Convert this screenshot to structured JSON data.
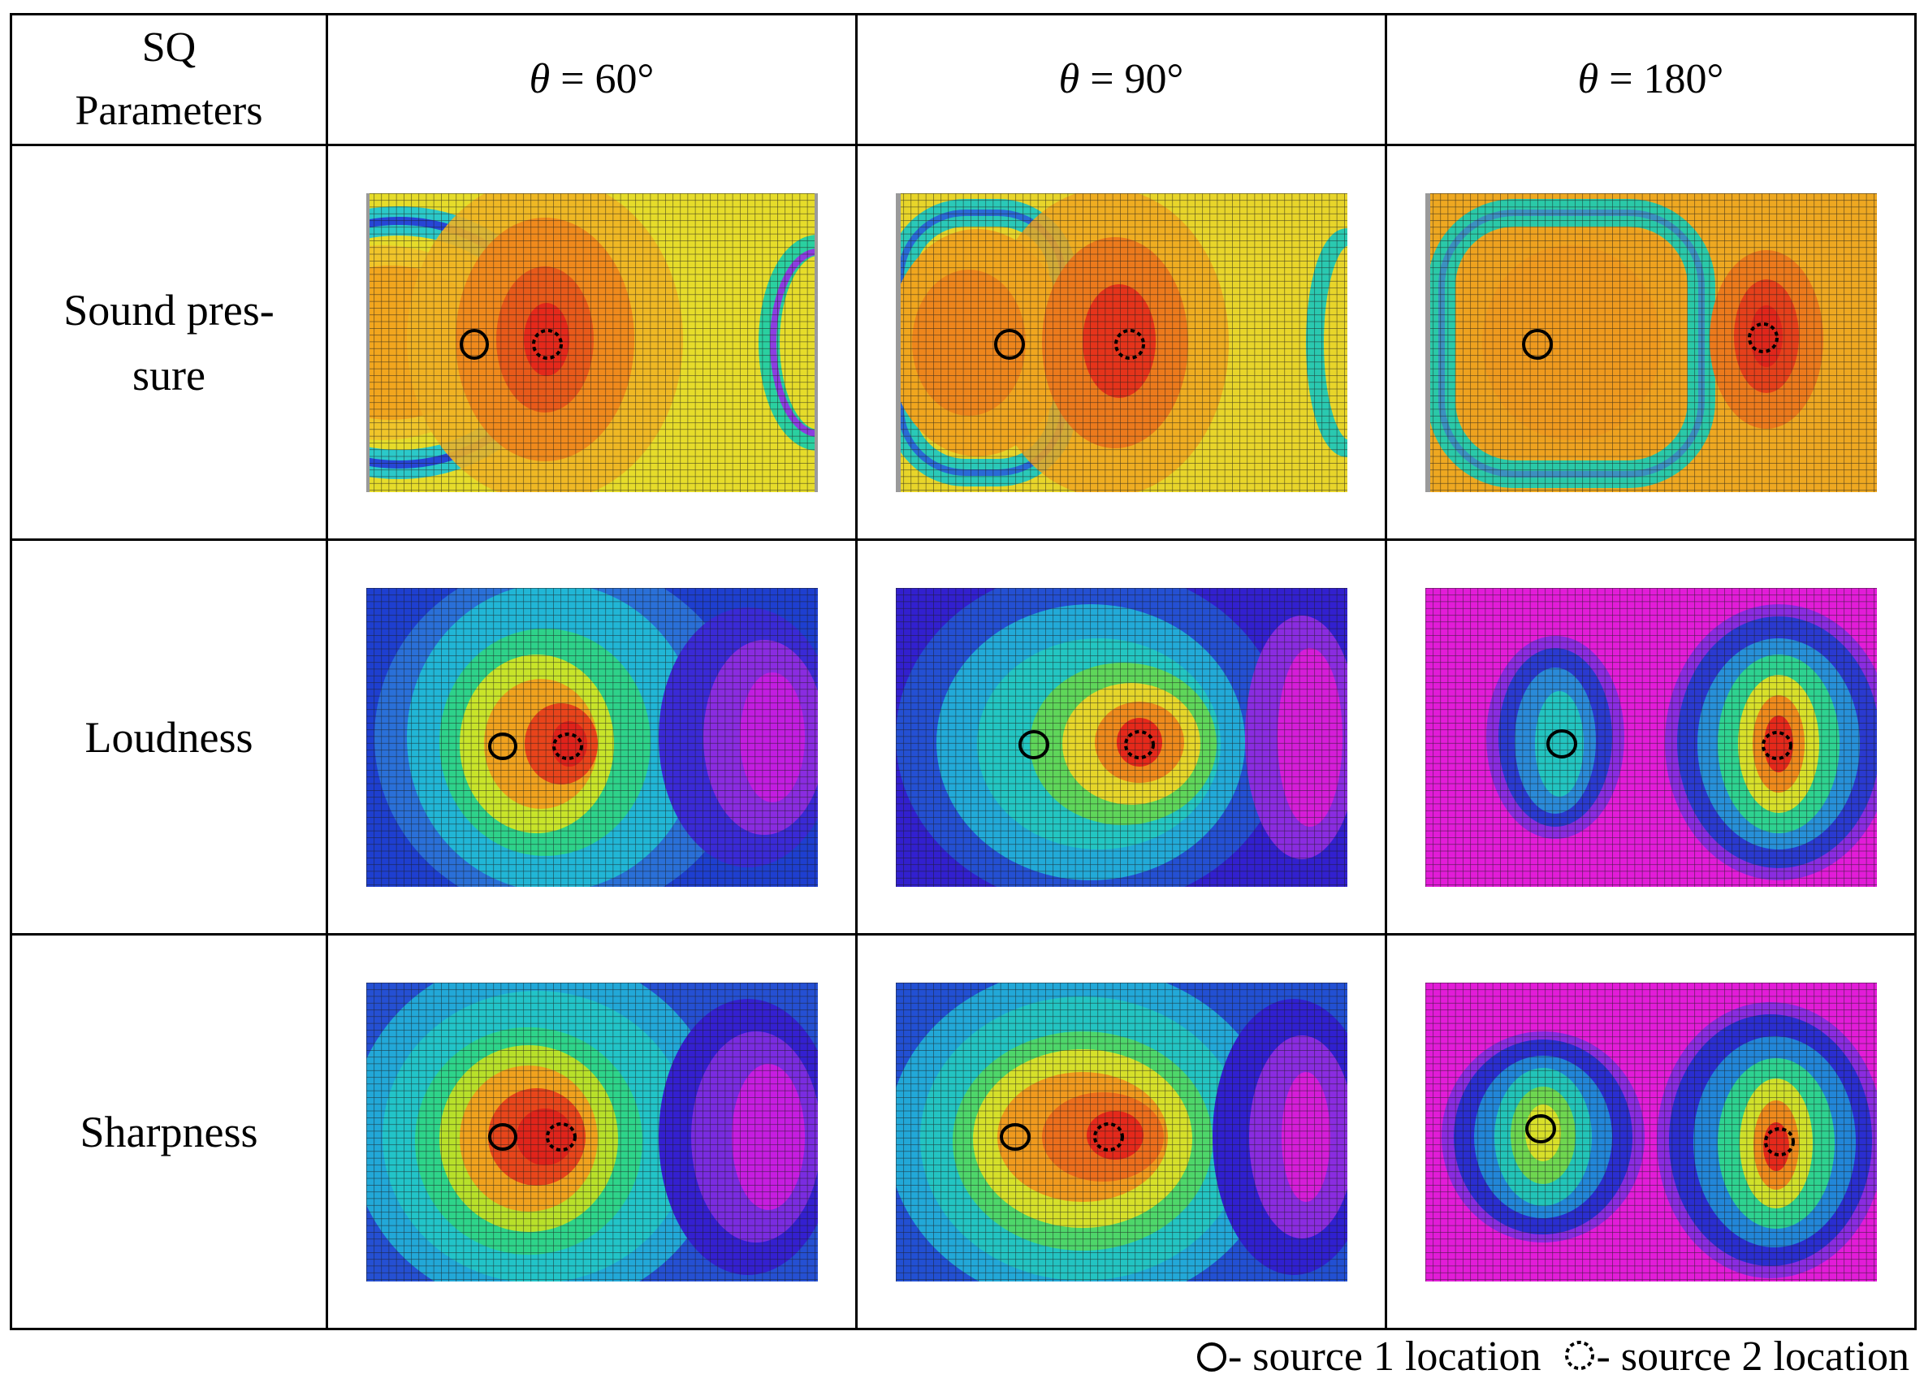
{
  "table": {
    "corner_label_line1": "SQ",
    "corner_label_line2": "Parameters",
    "columns": [
      {
        "symbol": "θ",
        "value": " = 60°"
      },
      {
        "symbol": "θ",
        "value": " = 90°"
      },
      {
        "symbol": "θ",
        "value": " = 180°"
      }
    ],
    "rows": [
      {
        "label_line1": "Sound pres-",
        "label_line2": "sure"
      },
      {
        "label_line1": "Loudness"
      },
      {
        "label_line1": "Sharpness"
      }
    ]
  },
  "legend": {
    "source1_label": "- source 1 location",
    "source2_label": "- source 2 location"
  },
  "colors": {
    "border": "#000000",
    "grid_line": "#1a1a1a",
    "hot": "#e8241b",
    "warm": "#f09a1a",
    "yellow": "#e8e42a",
    "green": "#2fd36a",
    "cyan": "#1ec7d6",
    "blue": "#1e3fd0",
    "magenta": "#e21cd8"
  }
}
